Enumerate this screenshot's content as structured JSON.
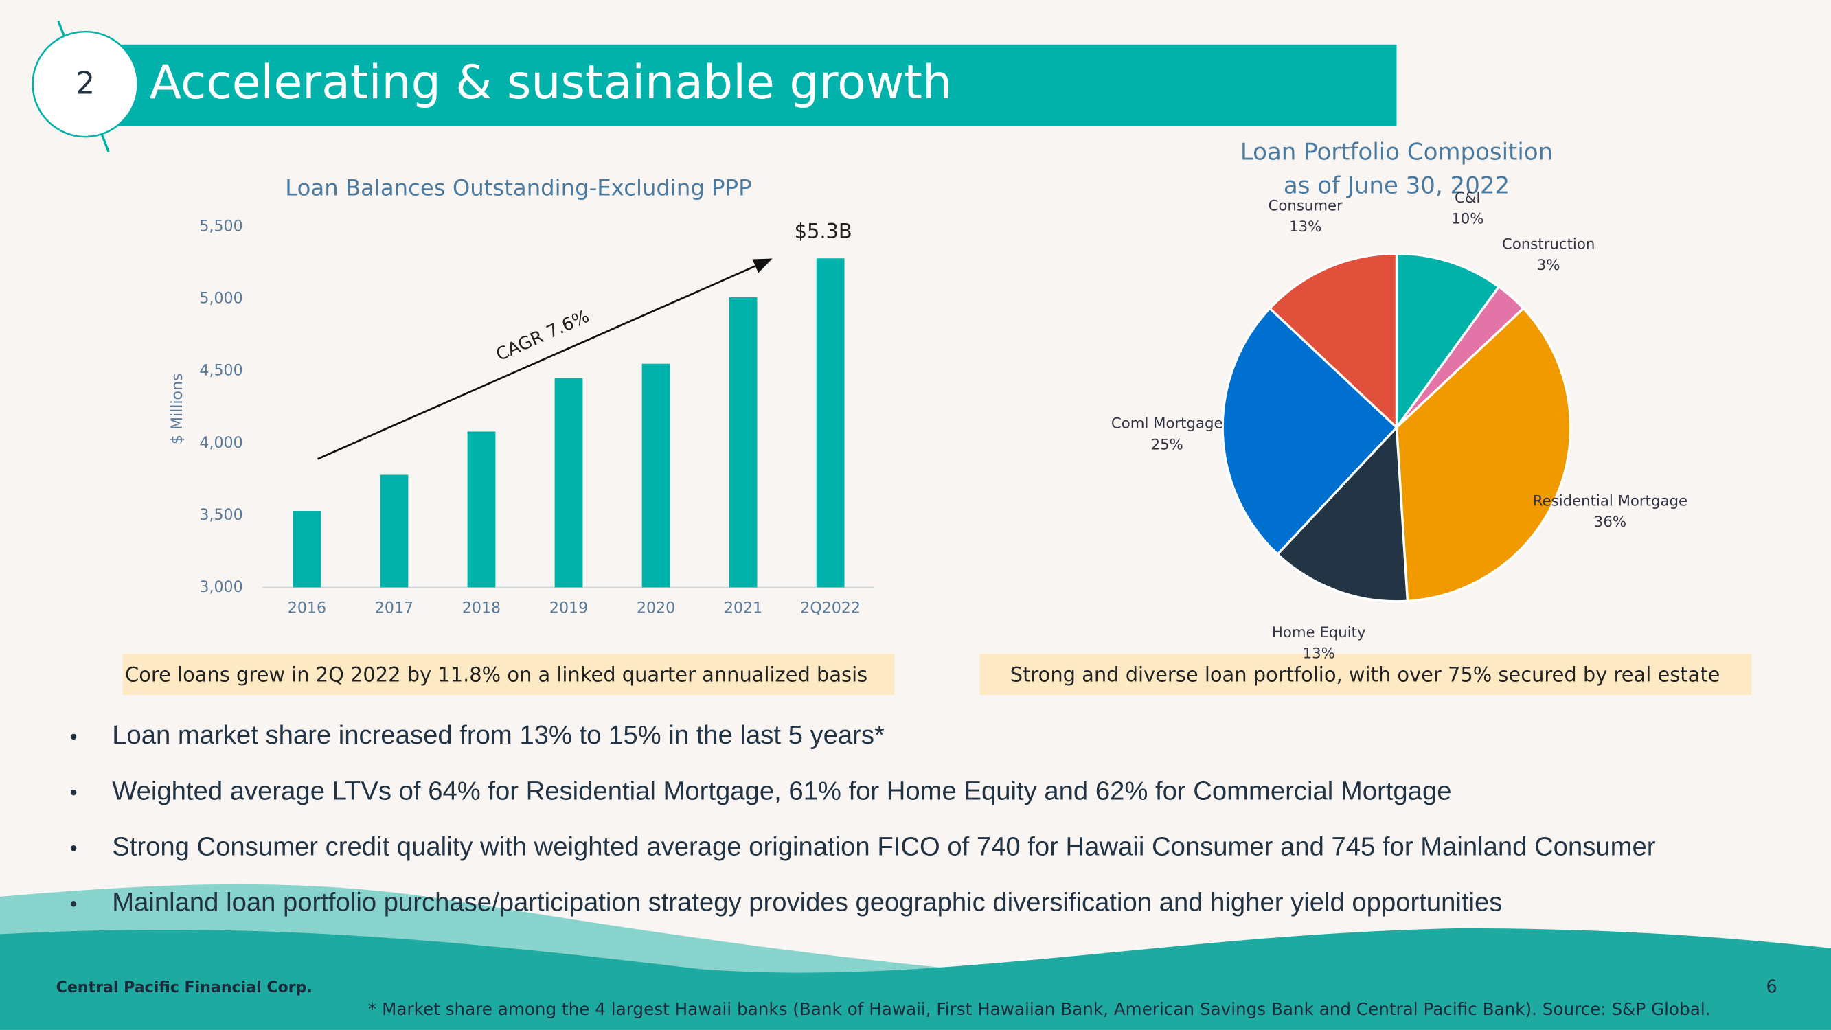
{
  "header": {
    "number": "2",
    "title": "Accelerating & sustainable growth"
  },
  "chart_data": [
    {
      "type": "bar",
      "title": "Loan Balances Outstanding-Excluding PPP",
      "y_label": "$ Millions",
      "categories": [
        "2016",
        "2017",
        "2018",
        "2019",
        "2020",
        "2021",
        "2Q2022"
      ],
      "values": [
        3530,
        3780,
        4080,
        4450,
        4550,
        5010,
        5280
      ],
      "color": "#00b2a9",
      "ylim": [
        3000,
        5500
      ],
      "yticks": [
        {
          "value": 3000,
          "label": "3,000"
        },
        {
          "value": 3500,
          "label": "3,500"
        },
        {
          "value": 4000,
          "label": "4,000"
        },
        {
          "value": 4500,
          "label": "4,500"
        },
        {
          "value": 5000,
          "label": "5,000"
        },
        {
          "value": 5500,
          "label": "5,500"
        }
      ],
      "grid": false,
      "annotations": [
        "$5.3B",
        "CAGR 7.6%"
      ]
    },
    {
      "type": "pie",
      "title": "Loan Portfolio Composition",
      "subtitle": "as of June 30, 2022",
      "categories": [
        "C&I",
        "Construction",
        "Residential Mortgage",
        "Home Equity",
        "Coml Mortgage",
        "Consumer"
      ],
      "values": [
        10,
        3,
        36,
        13,
        25,
        13
      ],
      "value_labels": [
        "10%",
        "3%",
        "36%",
        "13%",
        "25%",
        "13%"
      ],
      "colors": [
        "#00b2a9",
        "#e274a8",
        "#f09a00",
        "#233544",
        "#0070d0",
        "#e0503a"
      ]
    }
  ],
  "callouts": [
    "Core loans grew in 2Q 2022 by 11.8% on a linked quarter annualized basis",
    "Strong and diverse loan portfolio, with over 75% secured by real estate"
  ],
  "bullets": [
    "Loan market share increased from 13% to 15% in the last 5 years*",
    "Weighted average LTVs of 64% for Residential Mortgage, 61% for Home Equity and 62% for Commercial Mortgage",
    "Strong Consumer credit quality with weighted average origination FICO of 740 for Hawaii Consumer and 745 for Mainland Consumer",
    "Mainland loan portfolio purchase/participation strategy provides geographic diversification and higher yield opportunities"
  ],
  "footer": {
    "company": "Central Pacific Financial Corp.",
    "page": "6",
    "footnote": "* Market share among the 4 largest Hawaii banks (Bank of Hawaii, First Hawaiian Bank, American Savings Bank and Central Pacific Bank). Source: S&P Global."
  }
}
